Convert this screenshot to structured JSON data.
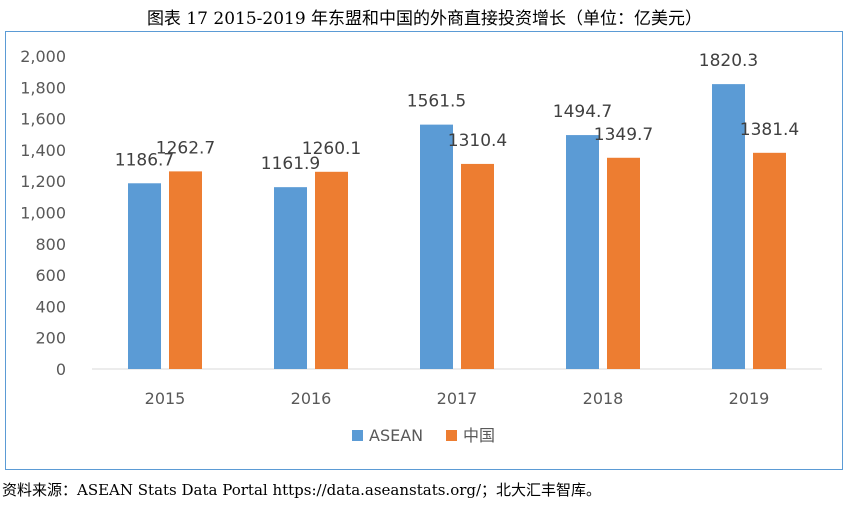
{
  "title": "图表 17  2015-2019 年东盟和中国的外商直接投资增长（单位：亿美元）",
  "source": "资料来源：ASEAN Stats Data Portal https://data.aseanstats.org/；北大汇丰智库。",
  "chart_data": {
    "type": "bar",
    "categories": [
      "2015",
      "2016",
      "2017",
      "2018",
      "2019"
    ],
    "series": [
      {
        "name": "ASEAN",
        "values": [
          1186.7,
          1161.9,
          1561.5,
          1494.7,
          1820.3
        ],
        "color": "#5b9bd5"
      },
      {
        "name": "中国",
        "values": [
          1262.7,
          1260.1,
          1310.4,
          1349.7,
          1381.4
        ],
        "color": "#ed7d31"
      }
    ],
    "ylim": [
      0,
      2000
    ],
    "yticks": [
      0,
      200,
      400,
      600,
      800,
      1000,
      1200,
      1400,
      1600,
      1800,
      2000
    ],
    "ytick_labels": [
      "0",
      "200",
      "400",
      "600",
      "800",
      "1,000",
      "1,200",
      "1,400",
      "1,600",
      "1,800",
      "2,000"
    ],
    "data_labels": [
      [
        "1186.7",
        "1161.9",
        "1561.5",
        "1494.7",
        "1820.3"
      ],
      [
        "1262.7",
        "1260.1",
        "1310.4",
        "1349.7",
        "1381.4"
      ]
    ],
    "legend_position": "bottom",
    "grid": false
  }
}
